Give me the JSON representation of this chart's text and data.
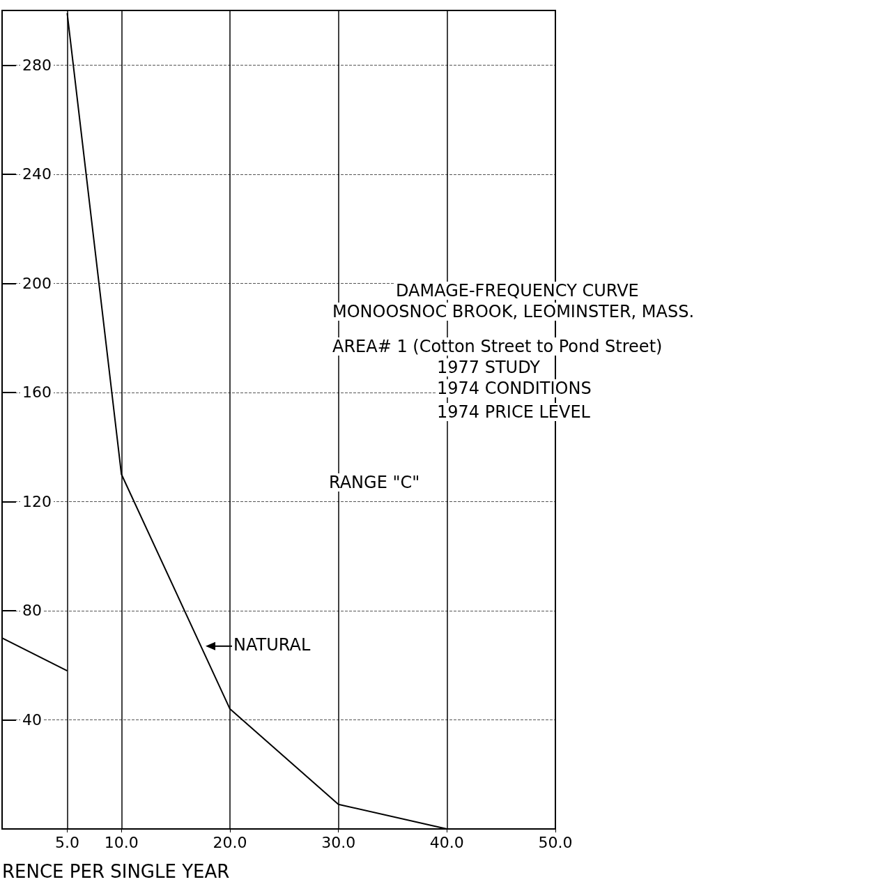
{
  "chart_data": {
    "type": "line",
    "title": "DAMAGE-FREQUENCY CURVE",
    "subtitle": "MONOOSNOC BROOK, LEOMINSTER, MASS.",
    "xlabel": "RENCE PER SINGLE YEAR",
    "annotations": [
      "AREA# 1 (Cotton Street to Pond Street)",
      "1977 STUDY",
      "1974 CONDITIONS",
      "1974 PRICE LEVEL",
      "RANGE \"C\"",
      {
        "text": "NATURAL",
        "x": 17.5,
        "y": 67
      }
    ],
    "series": [
      {
        "name": null,
        "color": "#000000",
        "x": [
          5,
          10,
          20,
          30,
          40
        ],
        "values": [
          299,
          130,
          44,
          9,
          0
        ]
      },
      {
        "name": null,
        "color": "#000000",
        "x": [
          -1,
          5
        ],
        "values": [
          70,
          58
        ]
      }
    ],
    "xlim": [
      -1,
      50
    ],
    "ylim": [
      0,
      300
    ],
    "xticks": [
      {
        "value": 5,
        "label": "5.0"
      },
      {
        "value": 10,
        "label": "10.0"
      },
      {
        "value": 20,
        "label": "20.0"
      },
      {
        "value": 30,
        "label": "30.0"
      },
      {
        "value": 40,
        "label": "40.0"
      },
      {
        "value": 50,
        "label": "50.0"
      }
    ],
    "yticks": [
      40,
      80,
      120,
      160,
      200,
      240,
      280
    ],
    "grid": true,
    "marker": "none",
    "line_style": "solid"
  }
}
